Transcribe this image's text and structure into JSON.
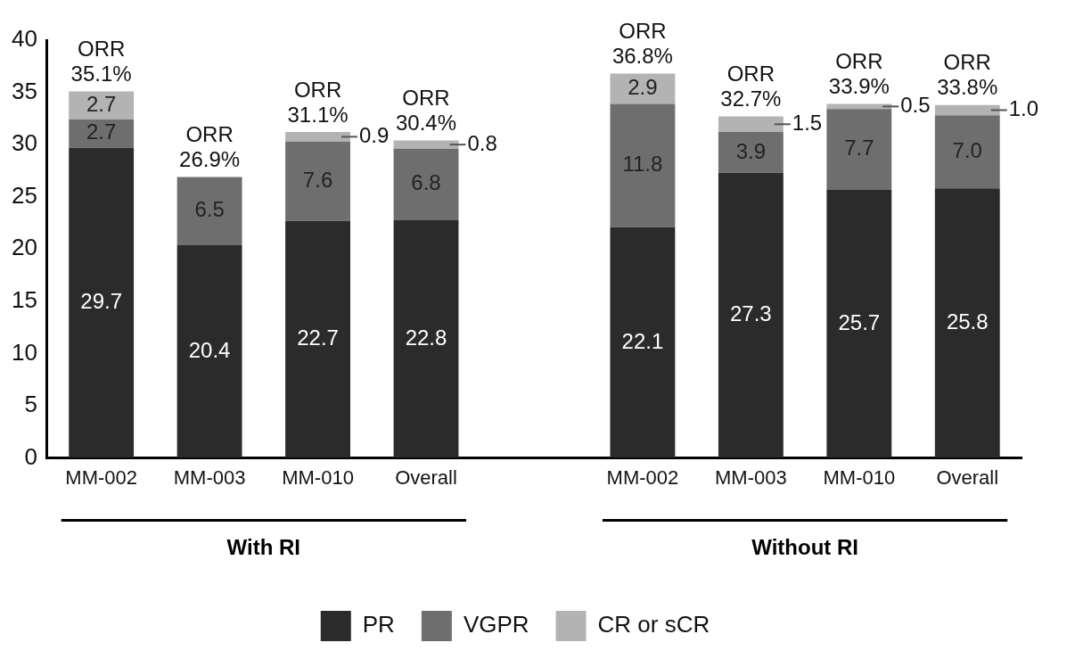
{
  "chart_data": {
    "type": "bar",
    "stacked": true,
    "categories": [
      "MM-002",
      "MM-003",
      "MM-010",
      "Overall",
      null,
      "MM-002",
      "MM-003",
      "MM-010",
      "Overall"
    ],
    "series": [
      {
        "name": "PR",
        "color": "#2b2b2b",
        "values": [
          29.7,
          20.4,
          22.7,
          22.8,
          null,
          22.1,
          27.3,
          25.7,
          25.8
        ],
        "value_labels": [
          "29.7",
          "20.4",
          "22.7",
          "22.8",
          null,
          "22.1",
          "27.3",
          "25.7",
          "25.8"
        ]
      },
      {
        "name": "VGPR",
        "color": "#6e6e6e",
        "values": [
          2.7,
          6.5,
          7.6,
          6.8,
          null,
          11.8,
          3.9,
          7.7,
          7.0
        ],
        "value_labels": [
          "2.7",
          "6.5",
          "7.6",
          "6.8",
          null,
          "11.8",
          "3.9",
          "7.7",
          "7.0"
        ]
      },
      {
        "name": "CR or sCR",
        "color": "#b3b3b3",
        "values": [
          2.7,
          null,
          0.9,
          0.8,
          null,
          2.9,
          1.5,
          0.5,
          1.0
        ],
        "value_labels": [
          "2.7",
          null,
          "0.9",
          "0.8",
          null,
          "2.9",
          "1.5",
          "0.5",
          "1.0"
        ]
      }
    ],
    "totals": [
      "ORR 35.1%",
      "ORR 26.9%",
      "ORR 31.1%",
      "ORR 30.4%",
      null,
      "ORR 36.8%",
      "ORR 32.7%",
      "ORR 33.9%",
      "ORR 33.8%"
    ],
    "annotations": [
      "With RI",
      "Without RI"
    ],
    "ylim": [
      0,
      40
    ],
    "yticks": [
      0,
      5,
      10,
      15,
      20,
      25,
      30,
      35,
      40
    ],
    "grid": false,
    "legend": "bottom"
  }
}
